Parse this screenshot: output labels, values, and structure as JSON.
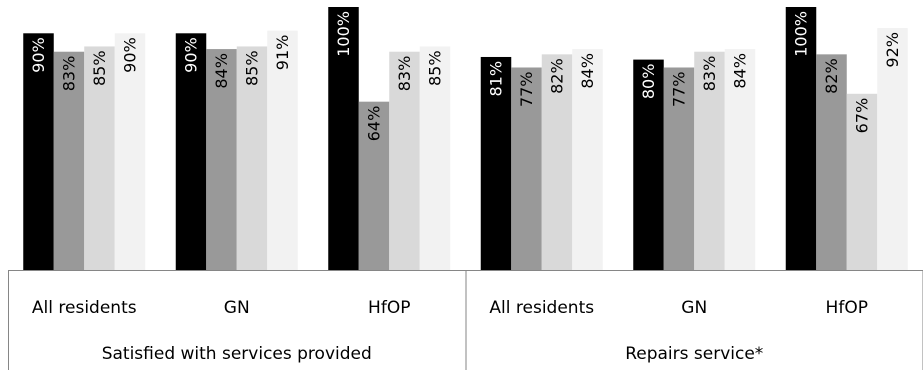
{
  "chart_data": {
    "type": "bar",
    "groups": [
      {
        "label": "Satisfied with services provided",
        "categories": [
          "All residents",
          "GN",
          "HfOP"
        ]
      },
      {
        "label": "Repairs service*",
        "categories": [
          "All residents",
          "GN",
          "HfOP"
        ]
      }
    ],
    "series": [
      {
        "color": "#000000",
        "values": [
          90,
          90,
          100,
          81,
          80,
          100
        ],
        "value_labels": [
          "90%",
          "90%",
          "100%",
          "81%",
          "80%",
          "100%"
        ]
      },
      {
        "color": "#999999",
        "values": [
          83,
          84,
          64,
          77,
          77,
          82
        ],
        "value_labels": [
          "83%",
          "84%",
          "64%",
          "77%",
          "77%",
          "82%"
        ]
      },
      {
        "color": "#d9d9d9",
        "values": [
          85,
          85,
          83,
          82,
          83,
          67
        ],
        "value_labels": [
          "85%",
          "85%",
          "83%",
          "82%",
          "83%",
          "67%"
        ]
      },
      {
        "color": "#f2f2f2",
        "values": [
          90,
          91,
          85,
          84,
          84,
          92
        ],
        "value_labels": [
          "90%",
          "91%",
          "85%",
          "84%",
          "84%",
          "92%"
        ]
      }
    ],
    "ylim": [
      0,
      100
    ],
    "value_label_color_on_dark": "#ffffff",
    "value_label_color_on_light": "#000000",
    "grid": false,
    "legend": "none"
  }
}
